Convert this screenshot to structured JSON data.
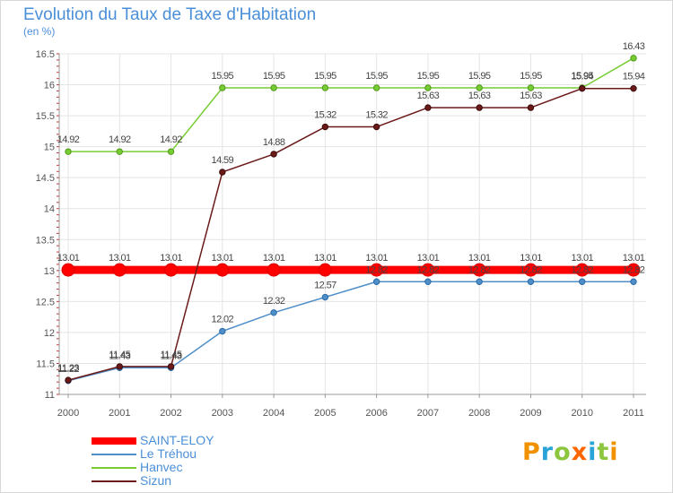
{
  "chart_data": {
    "type": "line",
    "title": "Evolution du Taux de Taxe d'Habitation",
    "subtitle": "(en %)",
    "xlabel": "",
    "ylabel": "",
    "categories": [
      "2000",
      "2001",
      "2002",
      "2003",
      "2004",
      "2005",
      "2006",
      "2007",
      "2008",
      "2009",
      "2010",
      "2011"
    ],
    "ylim": [
      11,
      16.5
    ],
    "yticks": [
      "11",
      "11.5",
      "12",
      "12.5",
      "13",
      "13.5",
      "14",
      "14.5",
      "15",
      "15.5",
      "16",
      "16.5"
    ],
    "grid": true,
    "legend_position": "bottom-left",
    "series": [
      {
        "name": "SAINT-ELOY",
        "color": "#ff0000",
        "values": [
          13.01,
          13.01,
          13.01,
          13.01,
          13.01,
          13.01,
          13.01,
          13.01,
          13.01,
          13.01,
          13.01,
          13.01
        ],
        "labels": [
          "13.01",
          "13.01",
          "13.01",
          "13.01",
          "13.01",
          "13.01",
          "13.01",
          "13.01",
          "13.01",
          "13.01",
          "13.01",
          "13.01"
        ]
      },
      {
        "name": "Le Tréhou",
        "color": "#4f8fc8",
        "values": [
          11.22,
          11.43,
          11.43,
          12.02,
          12.32,
          12.57,
          12.82,
          12.82,
          12.82,
          12.82,
          12.82,
          12.82
        ],
        "labels": [
          "11.22",
          "11.43",
          "11.43",
          "12.02",
          "12.32",
          "12.57",
          "12.82",
          "12.82",
          "12.82",
          "12.82",
          "12.82",
          "12.82"
        ]
      },
      {
        "name": "Hanvec",
        "color": "#77cc33",
        "values": [
          14.92,
          14.92,
          14.92,
          15.95,
          15.95,
          15.95,
          15.95,
          15.95,
          15.95,
          15.95,
          15.95,
          16.43
        ],
        "labels": [
          "14.92",
          "14.92",
          "14.92",
          "15.95",
          "15.95",
          "15.95",
          "15.95",
          "15.95",
          "15.95",
          "15.95",
          "15.95",
          "16.43"
        ]
      },
      {
        "name": "Sizun",
        "color": "#6b1a1a",
        "values": [
          11.23,
          11.45,
          11.45,
          14.59,
          14.88,
          15.32,
          15.32,
          15.63,
          15.63,
          15.63,
          15.94,
          15.94
        ],
        "labels": [
          "11.23",
          "11.45",
          "11.45",
          "14.59",
          "14.88",
          "15.32",
          "15.32",
          "15.63",
          "15.63",
          "15.63",
          "15.94",
          "15.94"
        ]
      }
    ]
  },
  "branding": {
    "logo_text": "Proxiti",
    "logo_colors": [
      "#f29100",
      "#2aa3d9",
      "#8cc63f",
      "#ff6600",
      "#2aa3d9",
      "#8cc63f",
      "#f29100"
    ]
  }
}
